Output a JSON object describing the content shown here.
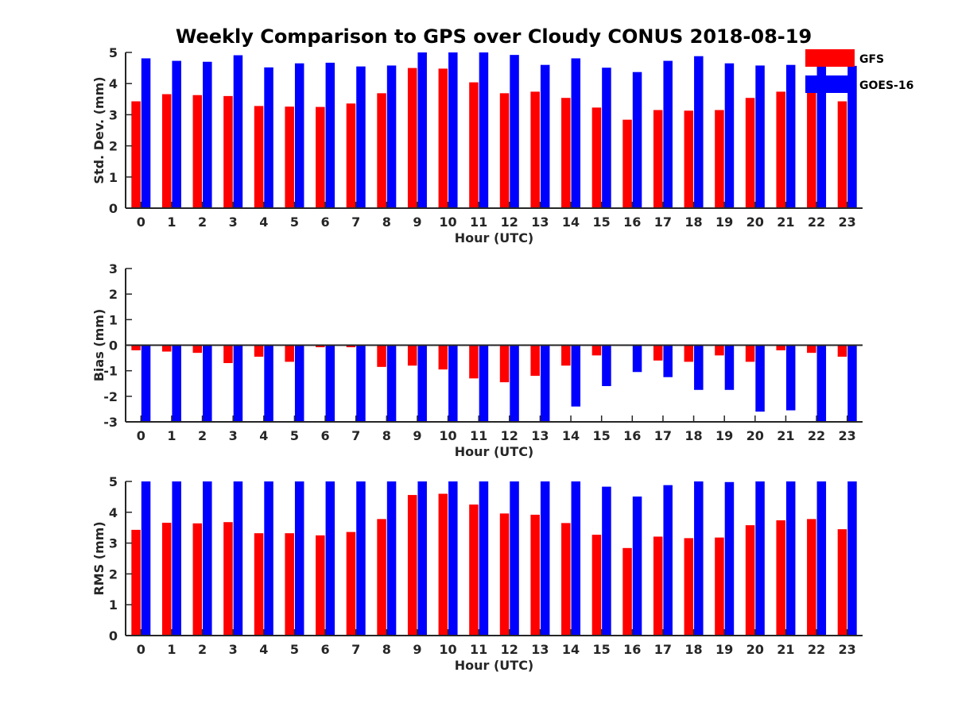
{
  "chart_data": {
    "type": "bar",
    "title": "Weekly Comparison to GPS over Cloudy CONUS 2018-08-19",
    "categories": [
      "0",
      "1",
      "2",
      "3",
      "4",
      "5",
      "6",
      "7",
      "8",
      "9",
      "10",
      "11",
      "12",
      "13",
      "14",
      "15",
      "16",
      "17",
      "18",
      "19",
      "20",
      "21",
      "22",
      "23"
    ],
    "colors": {
      "GFS": "#ff0000",
      "GOES-16": "#0000ff"
    },
    "legend": {
      "placement": "top-right",
      "entries": [
        "GFS",
        "GOES-16"
      ]
    },
    "panels": [
      {
        "ylabel": "Std. Dev. (mm)",
        "xlabel": "Hour (UTC)",
        "ylim": [
          0,
          5
        ],
        "yticks": [
          "0",
          "1",
          "2",
          "3",
          "4",
          "5"
        ],
        "series": [
          {
            "name": "GFS",
            "values": [
              3.43,
              3.66,
              3.63,
              3.6,
              3.28,
              3.26,
              3.25,
              3.36,
              3.69,
              4.5,
              4.48,
              4.04,
              3.69,
              3.74,
              3.54,
              3.23,
              2.84,
              3.15,
              3.13,
              3.15,
              3.54,
              3.74,
              3.77,
              3.43
            ]
          },
          {
            "name": "GOES-16",
            "values": [
              4.81,
              4.73,
              4.7,
              4.91,
              4.52,
              4.65,
              4.67,
              4.55,
              4.58,
              5.0,
              5.0,
              5.0,
              4.92,
              4.6,
              4.81,
              4.51,
              4.37,
              4.73,
              4.88,
              4.65,
              4.58,
              4.6,
              4.84,
              4.57
            ]
          }
        ]
      },
      {
        "ylabel": "Bias (mm)",
        "xlabel": "Hour (UTC)",
        "ylim": [
          -3,
          3
        ],
        "yticks": [
          "-3",
          "-2",
          "-1",
          "0",
          "1",
          "2",
          "3"
        ],
        "series": [
          {
            "name": "GFS",
            "values": [
              -0.2,
              -0.25,
              -0.3,
              -0.7,
              -0.45,
              -0.65,
              -0.08,
              -0.08,
              -0.85,
              -0.8,
              -0.95,
              -1.3,
              -1.45,
              -1.2,
              -0.8,
              -0.4,
              -0.03,
              -0.6,
              -0.65,
              -0.4,
              -0.65,
              -0.2,
              -0.3,
              -0.45
            ]
          },
          {
            "name": "GOES-16",
            "values": [
              -3.0,
              -3.0,
              -3.0,
              -3.0,
              -3.0,
              -3.0,
              -3.0,
              -3.0,
              -3.0,
              -3.0,
              -3.0,
              -3.0,
              -3.0,
              -3.0,
              -2.4,
              -1.6,
              -1.05,
              -1.25,
              -1.75,
              -1.75,
              -2.6,
              -2.55,
              -3.0,
              -3.0
            ]
          }
        ]
      },
      {
        "ylabel": "RMS (mm)",
        "xlabel": "Hour (UTC)",
        "ylim": [
          0,
          5
        ],
        "yticks": [
          "0",
          "1",
          "2",
          "3",
          "4",
          "5"
        ],
        "series": [
          {
            "name": "GFS",
            "values": [
              3.43,
              3.66,
              3.64,
              3.68,
              3.32,
              3.32,
              3.25,
              3.36,
              3.78,
              4.56,
              4.6,
              4.25,
              3.96,
              3.92,
              3.65,
              3.27,
              2.84,
              3.21,
              3.16,
              3.18,
              3.58,
              3.74,
              3.78,
              3.45
            ]
          },
          {
            "name": "GOES-16",
            "values": [
              5.0,
              5.0,
              5.0,
              5.0,
              5.0,
              5.0,
              5.0,
              5.0,
              5.0,
              5.0,
              5.0,
              5.0,
              5.0,
              5.0,
              5.0,
              4.83,
              4.51,
              4.88,
              5.0,
              4.98,
              5.0,
              5.0,
              5.0,
              5.0
            ]
          }
        ]
      }
    ]
  }
}
